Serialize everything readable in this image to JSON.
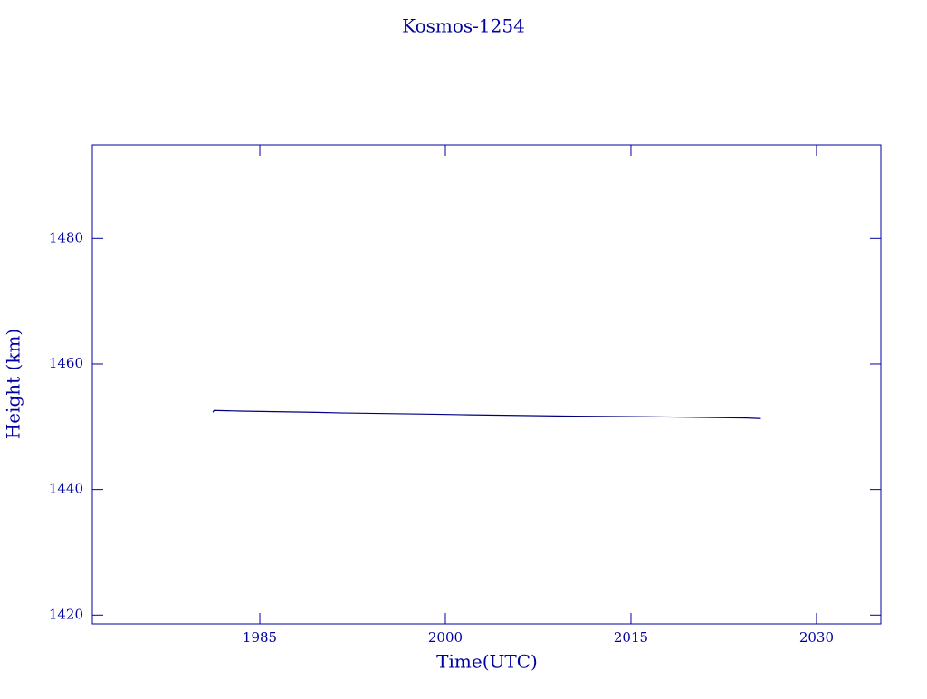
{
  "chart_data": {
    "type": "line",
    "title": "Kosmos-1254",
    "x_label": "Time(UTC)",
    "y_label": "Height (km)",
    "x": [
      1981.2,
      1981.3,
      1983.4,
      1989.6,
      1991.8,
      1999.1,
      2002.0,
      2009.7,
      2016.3,
      2024.4,
      2025.5
    ],
    "series": [
      {
        "color": "#000080",
        "values": [
          1452.3,
          1452.6,
          1452.5,
          1452.3,
          1452.2,
          1452.0,
          1451.9,
          1451.7,
          1451.6,
          1451.4,
          1451.3
        ]
      }
    ],
    "xlim": [
      1971.46,
      2035.2
    ],
    "xticks": [
      1985,
      2000,
      2015,
      2030
    ],
    "ylim": [
      1418.6,
      1494.9
    ],
    "yticks": [
      1420,
      1440,
      1460,
      1480
    ],
    "axis_color": "#0000a0"
  }
}
